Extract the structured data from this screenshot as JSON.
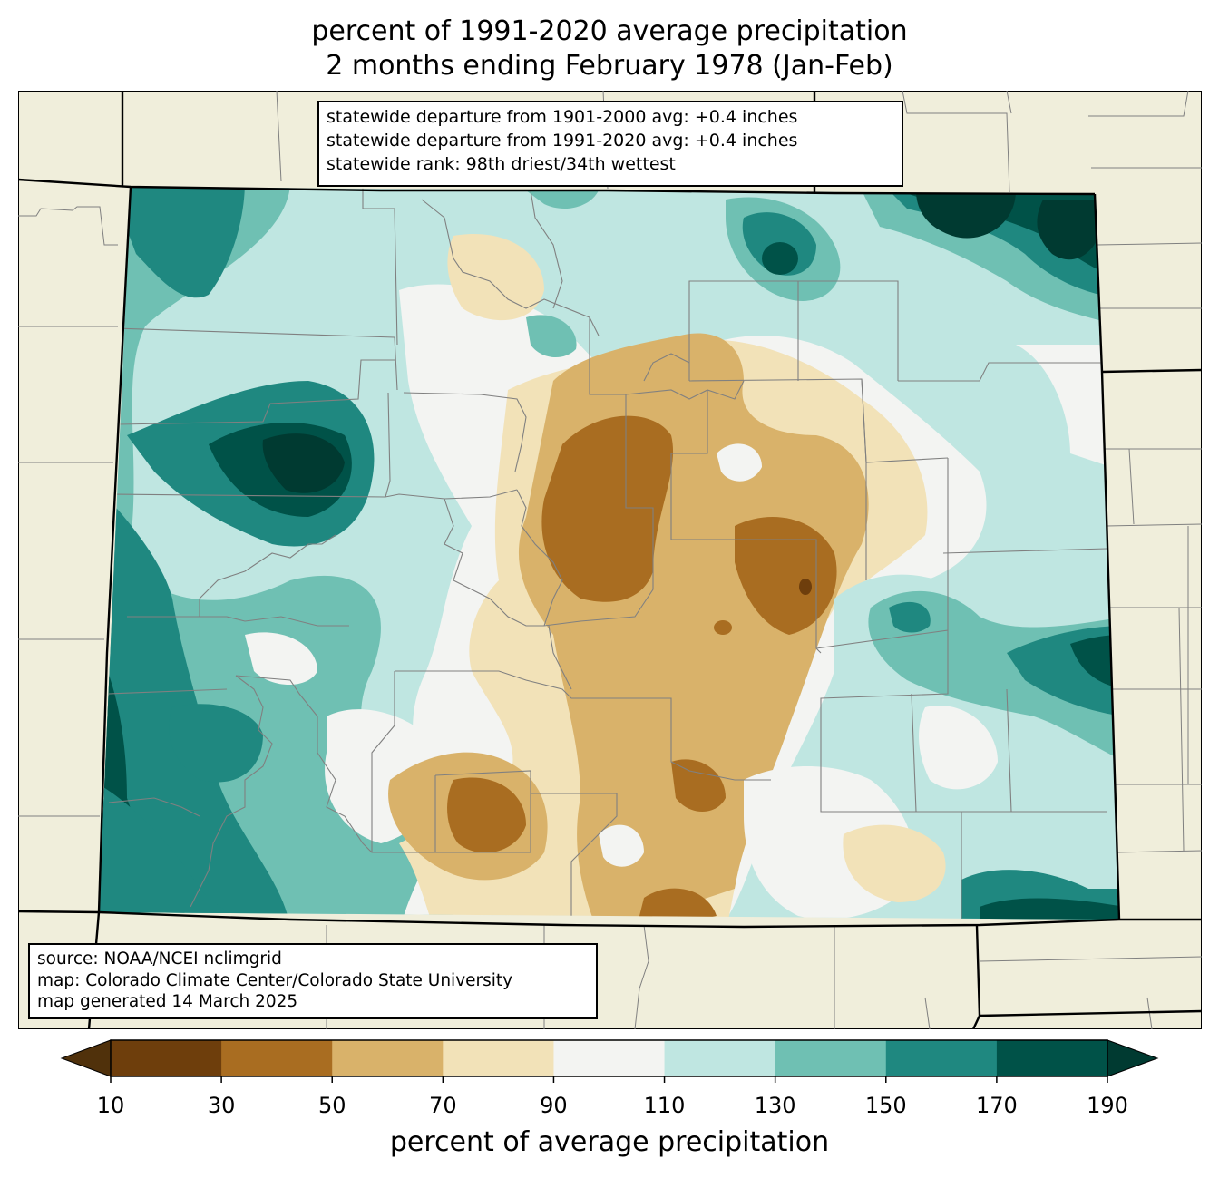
{
  "title": {
    "line1": "percent of 1991-2020 average precipitation",
    "line2": "2 months ending February 1978 (Jan-Feb)"
  },
  "stats": {
    "line1": "statewide departure from 1901-2000 avg: +0.4 inches",
    "line2": "statewide departure from 1991-2020 avg: +0.4 inches",
    "line3": "statewide rank: 98th driest/34th wettest"
  },
  "credits": {
    "source": "source: NOAA/NCEI nclimgrid",
    "map": "map: Colorado Climate Center/Colorado State University",
    "generated": "map generated 14 March 2025"
  },
  "colorbar": {
    "label": "percent of average precipitation",
    "ticks": [
      "10",
      "30",
      "50",
      "70",
      "90",
      "110",
      "130",
      "150",
      "170",
      "190"
    ],
    "colors": [
      "#6e3e0c",
      "#a96d21",
      "#d9b26a",
      "#f2e2b8",
      "#f3f4f2",
      "#bfe6e1",
      "#6fc0b3",
      "#1f8880",
      "#005248"
    ],
    "under_color": "#50310b",
    "over_color": "#003a31"
  },
  "map_colors": {
    "background": "#f0eedb",
    "county_lines": "#808080",
    "state_lines": "#000000"
  }
}
